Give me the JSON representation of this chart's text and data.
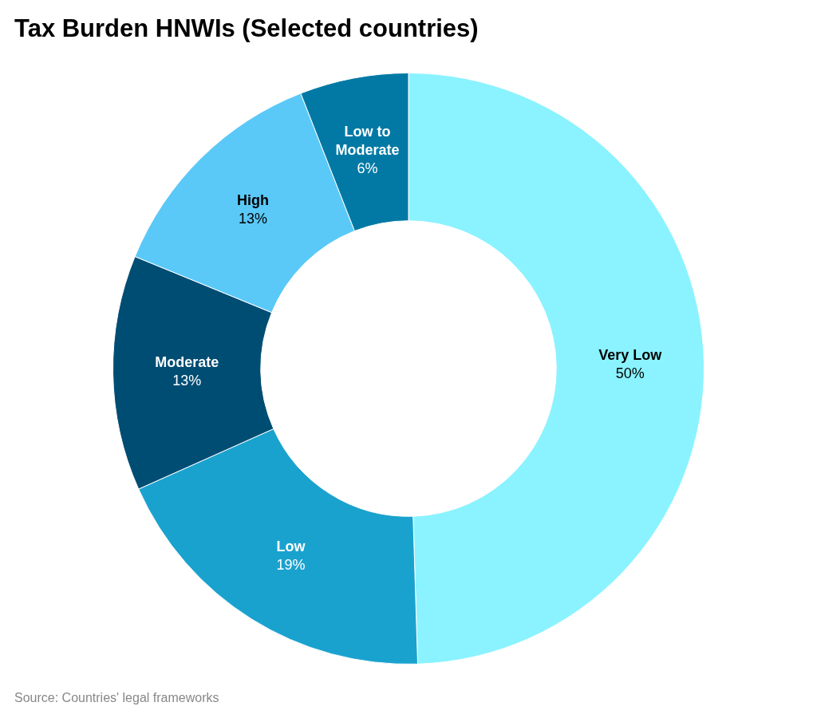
{
  "chart_data": {
    "type": "donut",
    "title": "Tax Burden HNWIs (Selected countries)",
    "categories": [
      "Very Low",
      "Low",
      "Moderate",
      "High",
      "Low to Moderate"
    ],
    "values": [
      50,
      19,
      13,
      13,
      6
    ],
    "value_labels": [
      "50%",
      "19%",
      "13%",
      "13%",
      "6%"
    ],
    "colors": [
      "#8af3ff",
      "#1aa2cf",
      "#004d73",
      "#5ac9f7",
      "#0279a5"
    ],
    "legend": false,
    "annotations": [
      "Source: Countries' legal frameworks"
    ]
  }
}
